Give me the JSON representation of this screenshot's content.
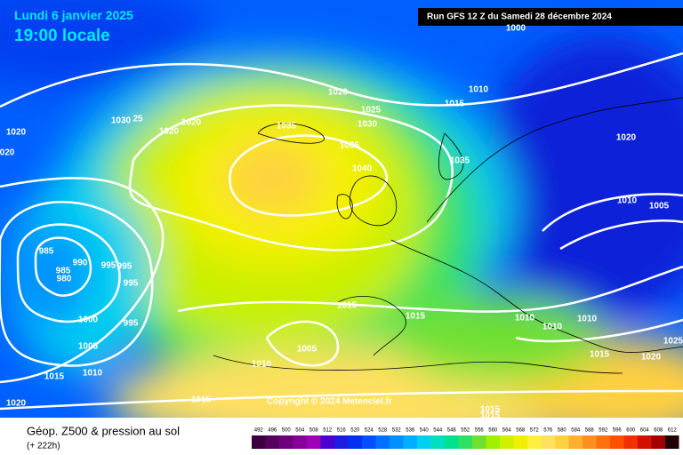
{
  "header": {
    "date": "Lundi 6 janvier 2025",
    "time": "19:00 locale",
    "run": "Run GFS 12 Z du Samedi 28 décembre 2024"
  },
  "copyright": "Copyright © 2024 Meteociel.fr",
  "legend": {
    "title": "Géop. Z500 & pression au sol",
    "lead": "(+ 222h)",
    "levels": [
      492,
      496,
      500,
      504,
      508,
      512,
      516,
      520,
      524,
      528,
      532,
      536,
      540,
      544,
      548,
      552,
      556,
      560,
      564,
      568,
      572,
      576,
      580,
      584,
      588,
      592,
      596,
      600,
      604,
      608,
      612
    ],
    "colors": [
      "#3c0040",
      "#55005e",
      "#6e007c",
      "#88009a",
      "#a000b8",
      "#4b00d0",
      "#1c1ce0",
      "#0030f0",
      "#0050ff",
      "#0070ff",
      "#0090ff",
      "#00b0ff",
      "#00d0f0",
      "#00e0c0",
      "#00e090",
      "#30e060",
      "#70e030",
      "#a0f000",
      "#d0f000",
      "#f0f000",
      "#fff040",
      "#ffe060",
      "#ffd040",
      "#ffb030",
      "#ff9020",
      "#ff7010",
      "#ff5000",
      "#f03000",
      "#d01000",
      "#a00000",
      "#200000"
    ]
  },
  "isobar_labels": [
    "1000",
    "1020",
    "1010",
    "1015",
    "1025",
    "1030",
    "1035",
    "1035",
    "1040",
    "1035",
    "1030",
    "25",
    "1020",
    "1020",
    "1020",
    "020",
    "1020",
    "1010",
    "1005",
    "985",
    "985",
    "990",
    "980",
    "995",
    "995",
    "995",
    "995",
    "1000",
    "1005",
    "1010",
    "1015",
    "1020",
    "1015",
    "1015",
    "1010",
    "1010",
    "1010",
    "1005",
    "1010",
    "1015",
    "1020",
    "1025",
    "1015",
    "1015",
    "1015"
  ]
}
